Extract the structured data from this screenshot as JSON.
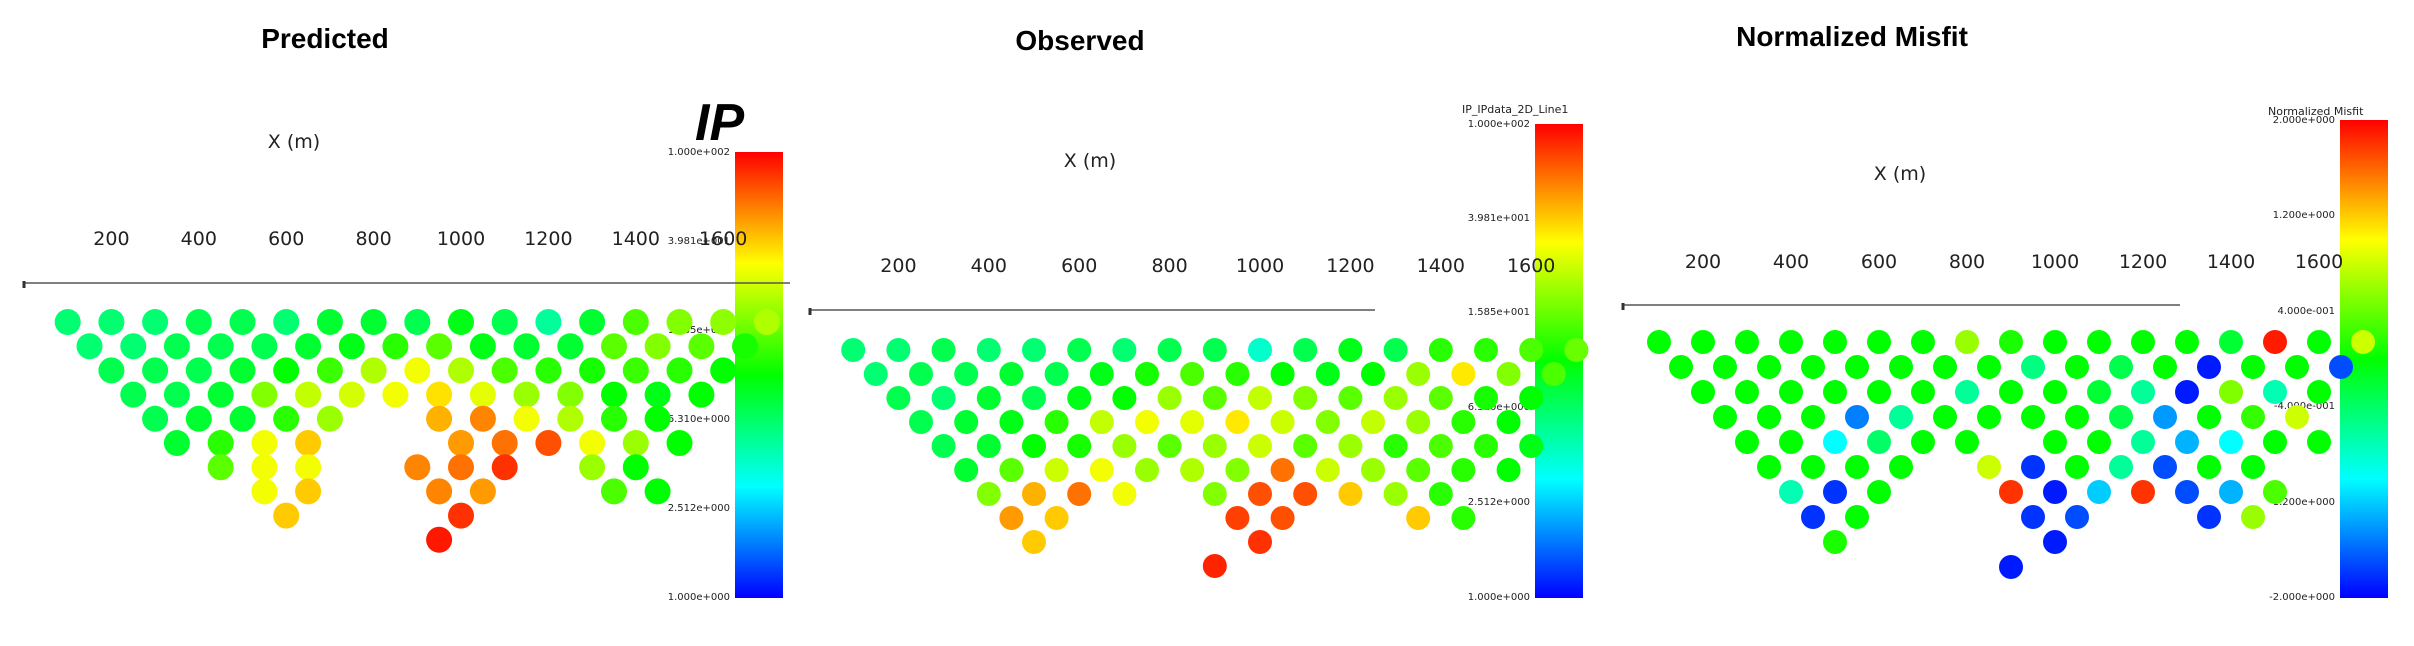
{
  "labels": {
    "ip": "IP"
  },
  "colormap": [
    "#0000ff",
    "#00ffff",
    "#00ff00",
    "#ffff00",
    "#ff0000"
  ],
  "colorbars": [
    {
      "title": "",
      "ticks": [
        "1.000e+002",
        "3.981e+001",
        "1.585e+001",
        "6.310e+000",
        "2.512e+000",
        "1.000e+000"
      ]
    },
    {
      "title": "IP_IPdata_2D_Line1",
      "ticks": [
        "1.000e+002",
        "3.981e+001",
        "1.585e+001",
        "6.310e+000",
        "2.512e+000",
        "1.000e+000"
      ]
    },
    {
      "title": "Normalized Misfit",
      "ticks": [
        "2.000e+000",
        "1.200e+000",
        "4.000e-001",
        "-4.000e-001",
        "-1.200e+000",
        "-2.000e+000"
      ]
    }
  ],
  "chart_data": [
    {
      "type": "scatter",
      "title": "Predicted",
      "xlabel": "X (m)",
      "xticks": [
        200,
        400,
        600,
        800,
        1000,
        1200,
        1400,
        1600
      ],
      "color_scale": "log",
      "color_range": [
        1,
        100
      ],
      "rows": [
        {
          "n": 1,
          "x": [
            100,
            200,
            300,
            400,
            500,
            600,
            700,
            800,
            900,
            1000,
            1100,
            1200,
            1300,
            1400,
            1500,
            1600,
            1700
          ],
          "v": [
            6,
            6,
            6,
            7,
            7,
            6,
            8,
            8,
            7,
            9,
            7,
            5,
            8,
            14,
            18,
            19,
            22
          ]
        },
        {
          "n": 2,
          "x": [
            150,
            250,
            350,
            450,
            550,
            650,
            750,
            850,
            950,
            1050,
            1150,
            1250,
            1350,
            1450,
            1550,
            1650
          ],
          "v": [
            6,
            6,
            7,
            7,
            7,
            8,
            9,
            12,
            15,
            9,
            8,
            8,
            15,
            18,
            15,
            11
          ]
        },
        {
          "n": 3,
          "x": [
            200,
            300,
            400,
            500,
            600,
            700,
            800,
            900,
            1000,
            1100,
            1200,
            1300,
            1400,
            1500,
            1600
          ],
          "v": [
            7,
            7,
            7,
            8,
            10,
            13,
            22,
            30,
            22,
            14,
            12,
            11,
            13,
            12,
            10
          ]
        },
        {
          "n": 4,
          "x": [
            250,
            350,
            450,
            550,
            650,
            750,
            850,
            950,
            1050,
            1150,
            1250,
            1350,
            1450,
            1550
          ],
          "v": [
            7,
            7,
            8,
            18,
            24,
            26,
            30,
            36,
            28,
            20,
            18,
            10,
            9,
            10
          ]
        },
        {
          "n": 5,
          "x": [
            300,
            400,
            500,
            600,
            700,
            950,
            1050,
            1150,
            1250,
            1350,
            1450
          ],
          "v": [
            7,
            8,
            8,
            12,
            20,
            45,
            55,
            30,
            22,
            12,
            10
          ]
        },
        {
          "n": 6,
          "x": [
            350,
            450,
            550,
            650,
            1000,
            1100,
            1200,
            1300,
            1400,
            1500
          ],
          "v": [
            8,
            12,
            30,
            40,
            50,
            60,
            70,
            30,
            20,
            10
          ]
        },
        {
          "n": 7,
          "x": [
            450,
            550,
            650,
            900,
            1000,
            1100,
            1300,
            1400
          ],
          "v": [
            15,
            30,
            30,
            55,
            60,
            80,
            20,
            10
          ]
        },
        {
          "n": 8,
          "x": [
            550,
            650,
            950,
            1050,
            1350,
            1450
          ],
          "v": [
            30,
            40,
            55,
            50,
            14,
            10
          ]
        },
        {
          "n": 9,
          "x": [
            600,
            1000
          ],
          "v": [
            40,
            80
          ]
        },
        {
          "n": 10,
          "x": [
            950
          ],
          "v": [
            90
          ]
        }
      ]
    },
    {
      "type": "scatter",
      "title": "Observed",
      "xlabel": "X (m)",
      "xticks": [
        200,
        400,
        600,
        800,
        1000,
        1200,
        1400,
        1600
      ],
      "color_scale": "log",
      "color_range": [
        1,
        100
      ],
      "rows": [
        {
          "n": 1,
          "x": [
            100,
            200,
            300,
            400,
            500,
            600,
            700,
            800,
            900,
            1000,
            1100,
            1200,
            1300,
            1400,
            1500,
            1600,
            1700
          ],
          "v": [
            6,
            6,
            7,
            6,
            6,
            7,
            6,
            7,
            7,
            4,
            7,
            9,
            7,
            12,
            12,
            14,
            16
          ]
        },
        {
          "n": 2,
          "x": [
            150,
            250,
            350,
            450,
            550,
            650,
            750,
            850,
            950,
            1050,
            1150,
            1250,
            1350,
            1450,
            1550,
            1650
          ],
          "v": [
            6,
            7,
            7,
            8,
            7,
            9,
            11,
            14,
            12,
            10,
            9,
            10,
            20,
            35,
            18,
            14
          ]
        },
        {
          "n": 3,
          "x": [
            200,
            300,
            400,
            500,
            600,
            700,
            800,
            900,
            1000,
            1100,
            1200,
            1300,
            1400,
            1500,
            1600
          ],
          "v": [
            7,
            6,
            8,
            7,
            9,
            10,
            20,
            15,
            24,
            18,
            15,
            20,
            15,
            11,
            10
          ]
        },
        {
          "n": 4,
          "x": [
            250,
            350,
            450,
            550,
            650,
            750,
            850,
            950,
            1050,
            1150,
            1250,
            1350,
            1450,
            1550
          ],
          "v": [
            7,
            8,
            9,
            12,
            24,
            30,
            28,
            35,
            25,
            18,
            24,
            20,
            12,
            10
          ]
        },
        {
          "n": 5,
          "x": [
            300,
            400,
            500,
            600,
            700,
            800,
            900,
            1000,
            1100,
            1200,
            1300,
            1400,
            1500,
            1600
          ],
          "v": [
            7,
            8,
            10,
            11,
            20,
            15,
            20,
            25,
            15,
            20,
            12,
            14,
            12,
            9
          ]
        },
        {
          "n": 6,
          "x": [
            350,
            450,
            550,
            650,
            750,
            850,
            950,
            1050,
            1150,
            1250,
            1350,
            1450,
            1550
          ],
          "v": [
            8,
            15,
            25,
            30,
            20,
            22,
            18,
            60,
            25,
            20,
            15,
            12,
            10
          ]
        },
        {
          "n": 7,
          "x": [
            400,
            500,
            600,
            700,
            900,
            1000,
            1100,
            1200,
            1300,
            1400
          ],
          "v": [
            18,
            45,
            60,
            30,
            18,
            70,
            70,
            40,
            20,
            12
          ]
        },
        {
          "n": 8,
          "x": [
            450,
            550,
            950,
            1050,
            1350,
            1450
          ],
          "v": [
            50,
            40,
            75,
            70,
            40,
            12
          ]
        },
        {
          "n": 9,
          "x": [
            500,
            1000
          ],
          "v": [
            40,
            80
          ]
        },
        {
          "n": 10,
          "x": [
            900
          ],
          "v": [
            85
          ]
        }
      ]
    },
    {
      "type": "scatter",
      "title": "Normalized Misfit",
      "xlabel": "X (m)",
      "xticks": [
        200,
        400,
        600,
        800,
        1000,
        1200,
        1400,
        1600
      ],
      "color_scale": "linear",
      "color_range": [
        -2,
        2
      ],
      "rows": [
        {
          "n": 1,
          "x": [
            100,
            200,
            300,
            400,
            500,
            600,
            700,
            800,
            900,
            1000,
            1100,
            1200,
            1300,
            1400,
            1500,
            1600,
            1700
          ],
          "v": [
            0,
            0,
            0,
            0,
            0,
            0,
            0,
            0.6,
            0.1,
            0,
            0,
            0,
            0,
            -0.2,
            1.9,
            0,
            0.8
          ]
        },
        {
          "n": 2,
          "x": [
            150,
            250,
            350,
            450,
            550,
            650,
            750,
            850,
            950,
            1050,
            1150,
            1250,
            1350,
            1450,
            1550,
            1650
          ],
          "v": [
            0,
            0,
            0,
            0,
            0,
            0,
            0,
            0,
            -0.5,
            0,
            -0.3,
            0,
            -1.9,
            0,
            0,
            -1.7
          ]
        },
        {
          "n": 3,
          "x": [
            200,
            300,
            400,
            500,
            600,
            700,
            800,
            900,
            1000,
            1100,
            1200,
            1300,
            1400,
            1500,
            1600
          ],
          "v": [
            0,
            0,
            0,
            0,
            0,
            0,
            -0.6,
            0,
            0,
            -0.2,
            -0.6,
            -1.9,
            0.5,
            -0.7,
            0
          ]
        },
        {
          "n": 4,
          "x": [
            250,
            350,
            450,
            550,
            650,
            750,
            850,
            950,
            1050,
            1150,
            1250,
            1350,
            1450,
            1550
          ],
          "v": [
            0,
            0,
            0,
            -1.5,
            -0.6,
            0,
            0,
            0,
            0,
            -0.3,
            -1.4,
            0,
            0.2,
            0.8
          ]
        },
        {
          "n": 5,
          "x": [
            300,
            400,
            500,
            600,
            700,
            800,
            1000,
            1100,
            1200,
            1300,
            1400,
            1500,
            1600
          ],
          "v": [
            0,
            0,
            -1.0,
            -0.4,
            0,
            0,
            0,
            0,
            -0.6,
            -1.3,
            -1.0,
            0,
            0
          ]
        },
        {
          "n": 6,
          "x": [
            350,
            450,
            550,
            650,
            850,
            950,
            1050,
            1150,
            1250,
            1350,
            1450
          ],
          "v": [
            0,
            0,
            0,
            0,
            0.8,
            -1.8,
            0,
            -0.6,
            -1.7,
            0,
            0
          ]
        },
        {
          "n": 7,
          "x": [
            400,
            500,
            600,
            900,
            1000,
            1100,
            1200,
            1300,
            1400,
            1500
          ],
          "v": [
            -0.7,
            -1.8,
            0,
            1.8,
            -1.9,
            -1.2,
            1.8,
            -1.7,
            -1.3,
            0.3
          ]
        },
        {
          "n": 8,
          "x": [
            450,
            550,
            950,
            1050,
            1350,
            1450
          ],
          "v": [
            -1.8,
            0,
            -1.8,
            -1.7,
            -1.8,
            0.6
          ]
        },
        {
          "n": 9,
          "x": [
            500,
            1000
          ],
          "v": [
            0.1,
            -1.9
          ]
        },
        {
          "n": 10,
          "x": [
            900
          ],
          "v": [
            -1.9
          ]
        }
      ]
    }
  ]
}
